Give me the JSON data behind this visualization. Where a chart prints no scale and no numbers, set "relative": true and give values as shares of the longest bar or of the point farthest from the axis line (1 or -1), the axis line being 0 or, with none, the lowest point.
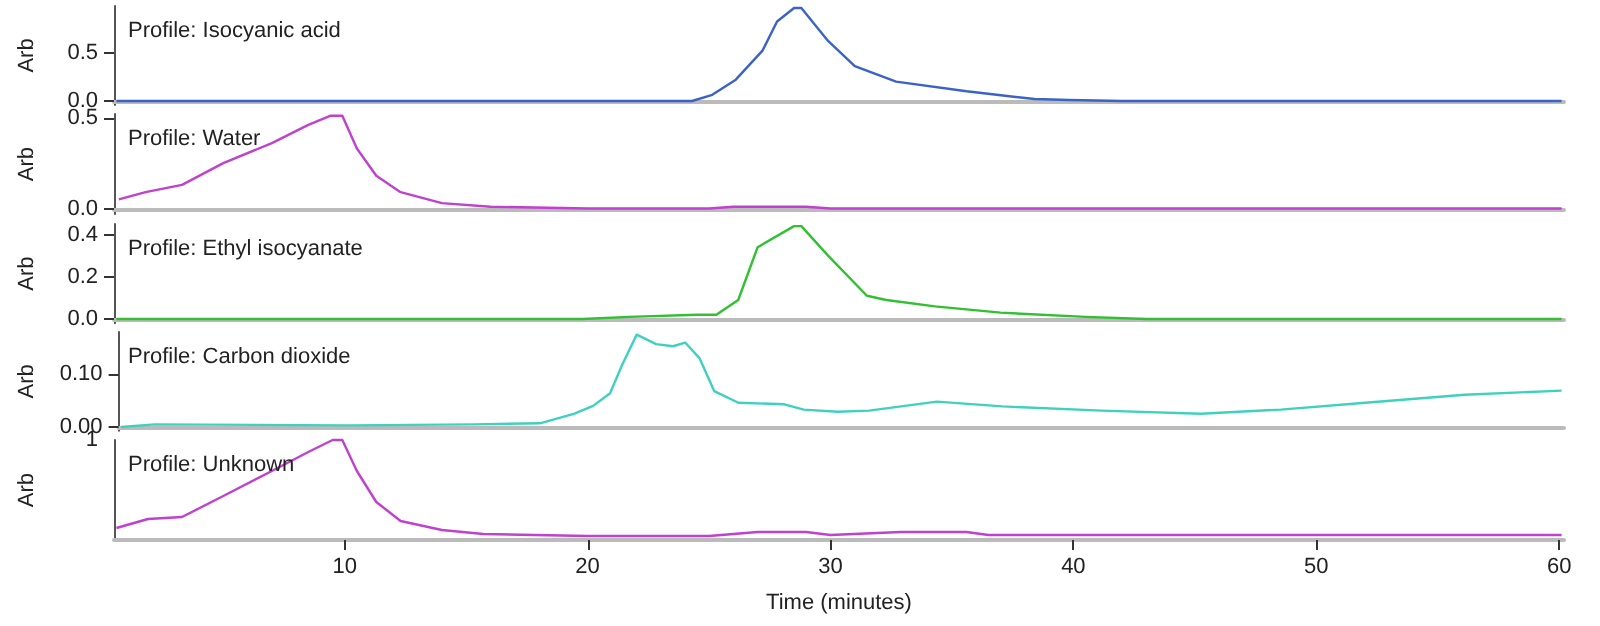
{
  "chart_data": [
    {
      "type": "line",
      "title": "Profile: Isocyanic acid",
      "ylabel": "Arb",
      "tick_labels": "y",
      "marker": "none",
      "grid": false,
      "color": "#3a62c8",
      "x": [
        0.6,
        10,
        20,
        24.3,
        25.1,
        26.1,
        27.2,
        27.8,
        28.5,
        28.8,
        29.9,
        31,
        32.7,
        35.6,
        38.4,
        39.8,
        42,
        50,
        60.1
      ],
      "values": [
        0,
        0,
        0,
        0,
        0.06,
        0.22,
        0.52,
        0.82,
        0.96,
        0.96,
        0.62,
        0.36,
        0.2,
        0.1,
        0.02,
        0.01,
        0,
        0,
        0
      ],
      "xlim": [
        0.5,
        60.2
      ],
      "ylim": [
        -0.04,
        0.98
      ],
      "yticks": [
        {
          "value": 0,
          "label": "0.0"
        },
        {
          "value": 0.5,
          "label": "0.5"
        }
      ]
    },
    {
      "type": "line",
      "title": "Profile: Water",
      "ylabel": "Arb",
      "tick_labels": "y",
      "marker": "none",
      "grid": false,
      "color": "#c040d0",
      "x": [
        0.7,
        1.8,
        3.3,
        5,
        7,
        8.5,
        9.4,
        9.9,
        10.5,
        11.3,
        12.3,
        14,
        16,
        20,
        25,
        26,
        29,
        30,
        40,
        50,
        60.1
      ],
      "values": [
        0.05,
        0.09,
        0.13,
        0.25,
        0.36,
        0.46,
        0.51,
        0.51,
        0.33,
        0.18,
        0.09,
        0.03,
        0.01,
        0,
        0,
        0.01,
        0.01,
        0,
        0,
        0,
        0
      ],
      "xlim": [
        0.5,
        60.2
      ],
      "ylim": [
        -0.03,
        0.52
      ],
      "yticks": [
        {
          "value": 0,
          "label": "0.0"
        },
        {
          "value": 0.5,
          "label": "0.5"
        }
      ]
    },
    {
      "type": "line",
      "title": "Profile: Ethyl isocyanate",
      "ylabel": "Arb",
      "tick_labels": "y",
      "marker": "none",
      "grid": false,
      "color": "#30c030",
      "x": [
        0.6,
        10,
        19.8,
        21.7,
        24.5,
        25.3,
        26.2,
        27,
        28.5,
        28.8,
        29.9,
        31.5,
        32.3,
        34.3,
        37,
        40.5,
        43,
        50,
        60.1
      ],
      "values": [
        0,
        0,
        0,
        0.01,
        0.02,
        0.02,
        0.09,
        0.34,
        0.44,
        0.44,
        0.3,
        0.11,
        0.09,
        0.06,
        0.03,
        0.01,
        0,
        0,
        0
      ],
      "xlim": [
        0.5,
        60.2
      ],
      "ylim": [
        -0.02,
        0.45
      ],
      "yticks": [
        {
          "value": 0,
          "label": "0.0"
        },
        {
          "value": 0.2,
          "label": "0.2"
        },
        {
          "value": 0.4,
          "label": "0.4"
        }
      ]
    },
    {
      "type": "line",
      "title": "Profile: Carbon dioxide",
      "ylabel": "Arb",
      "tick_labels": "y",
      "marker": "none",
      "grid": false,
      "color": "#40d0c0",
      "x": [
        0.6,
        2,
        10,
        15.2,
        17.9,
        19.3,
        20.1,
        20.8,
        21.3,
        21.9,
        22.7,
        23.4,
        23.9,
        24.5,
        25.1,
        26.1,
        28,
        28.8,
        30.2,
        31.5,
        34.3,
        37,
        41.1,
        45.2,
        48.5,
        52,
        56.1,
        60.1
      ],
      "values": [
        0,
        0.005,
        0.003,
        0.005,
        0.007,
        0.025,
        0.04,
        0.064,
        0.118,
        0.175,
        0.157,
        0.153,
        0.16,
        0.13,
        0.068,
        0.046,
        0.043,
        0.033,
        0.029,
        0.031,
        0.048,
        0.039,
        0.031,
        0.025,
        0.033,
        0.046,
        0.061,
        0.069
      ],
      "xlim": [
        0.5,
        60.2
      ],
      "ylim": [
        -0.007,
        0.18
      ],
      "yticks": [
        {
          "value": 0,
          "label": "0.00"
        },
        {
          "value": 0.1,
          "label": "0.10"
        }
      ]
    },
    {
      "type": "line",
      "title": "Profile: Unknown",
      "ylabel": "Arb",
      "xlabel": "Time (minutes)",
      "tick_labels": "x",
      "relative": true,
      "marker": "none",
      "grid": false,
      "color": "#c040d0",
      "annotations": [
        "1"
      ],
      "x": [
        0.6,
        1.9,
        3.3,
        5,
        7,
        8.5,
        9.5,
        9.9,
        10.5,
        11.3,
        12.3,
        14,
        15.7,
        20,
        25,
        27,
        29,
        30,
        32.9,
        35.6,
        36.5,
        45,
        60.1
      ],
      "values": [
        0.12,
        0.21,
        0.23,
        0.44,
        0.69,
        0.88,
        1,
        1,
        0.69,
        0.38,
        0.19,
        0.1,
        0.06,
        0.04,
        0.04,
        0.08,
        0.08,
        0.05,
        0.08,
        0.08,
        0.05,
        0.05,
        0.05
      ],
      "xlim": [
        0.5,
        60.2
      ],
      "xticks": [
        10,
        20,
        30,
        40,
        50,
        60
      ]
    }
  ]
}
